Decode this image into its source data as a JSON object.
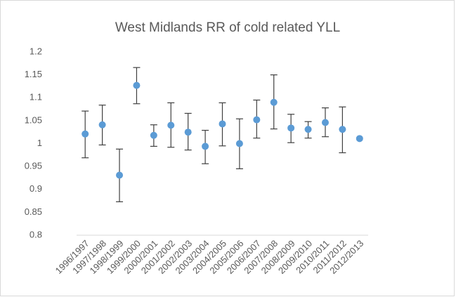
{
  "chart_data": {
    "type": "errorbar",
    "title": "West Midlands RR of cold related YLL",
    "categories": [
      "1996/1997",
      "1997/1998",
      "1998/1999",
      "1999/2000",
      "2000/2001",
      "2001/2002",
      "2002/2003",
      "2003/2004",
      "2004/2005",
      "2005/2006",
      "2006/2007",
      "2007/2008",
      "2008/2009",
      "2009/2010",
      "2010/2011",
      "2011/2012",
      "2012/2013"
    ],
    "values": [
      1.021,
      1.041,
      0.931,
      1.127,
      1.018,
      1.04,
      1.025,
      0.994,
      1.043,
      1.0,
      1.052,
      1.09,
      1.034,
      1.031,
      1.046,
      1.031,
      1.011
    ],
    "lower": [
      0.969,
      0.997,
      0.873,
      1.087,
      0.994,
      0.992,
      0.986,
      0.956,
      0.995,
      0.945,
      1.012,
      1.032,
      1.002,
      1.012,
      1.015,
      0.98,
      null
    ],
    "upper": [
      1.071,
      1.084,
      0.988,
      1.166,
      1.041,
      1.089,
      1.066,
      1.029,
      1.089,
      1.054,
      1.095,
      1.15,
      1.064,
      1.048,
      1.078,
      1.08,
      null
    ],
    "color": "#5b9bd5",
    "ylim": [
      0.8,
      1.2
    ],
    "yticks": [
      0.8,
      0.85,
      0.9,
      0.95,
      1,
      1.05,
      1.1,
      1.15,
      1.2
    ],
    "grid": false
  }
}
